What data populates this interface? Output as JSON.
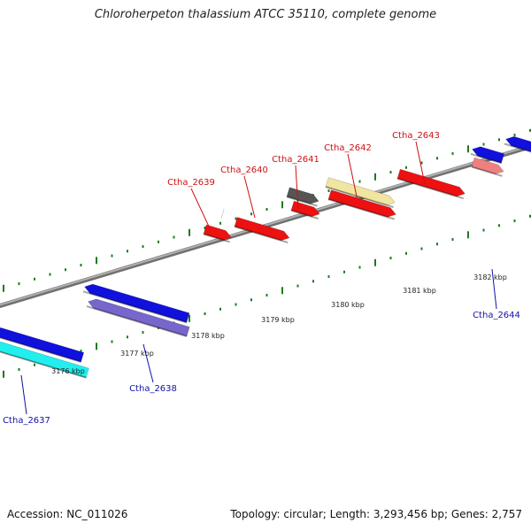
{
  "title": "Chloroherpeton thalassium ATCC 35110, complete genome",
  "footer": {
    "accession": "Accession: NC_011026",
    "summary": "Topology: circular; Length: 3,293,456 bp; Genes: 2,757"
  },
  "colors": {
    "backbone": "#8a8a8a",
    "ticks": "#1e7a1e",
    "label_forward": "#cc1111",
    "label_reverse": "#1111aa"
  },
  "axis": {
    "tick_labels": [
      "3176 kbp",
      "3177 kbp",
      "3178 kbp",
      "3179 kbp",
      "3180 kbp",
      "3181 kbp",
      "3182 kbp"
    ]
  },
  "genes": [
    {
      "id": "Ctha_2639",
      "strand": "+",
      "color": "#ee1111"
    },
    {
      "id": "Ctha_2640",
      "strand": "+",
      "color": "#ee1111"
    },
    {
      "id": "Ctha_2641",
      "strand": "+",
      "color": "#555555"
    },
    {
      "id": "Ctha_2642",
      "strand": "+",
      "color": "#f0e6a0"
    },
    {
      "id": "Ctha_2643",
      "strand": "+",
      "color": "#ee1111"
    },
    {
      "id": "Ctha_2644",
      "strand": "-",
      "color": "#f08080"
    },
    {
      "id": "Ctha_2637",
      "strand": "-",
      "color": "#22eeee"
    },
    {
      "id": "Ctha_2638",
      "strand": "-",
      "color": "#7766cc"
    }
  ],
  "unlabeled_genes": [
    "#ee1111",
    "#ee1111",
    "#ee1111",
    "#1111dd",
    "#1111dd",
    "#1111dd",
    "#1111dd"
  ]
}
